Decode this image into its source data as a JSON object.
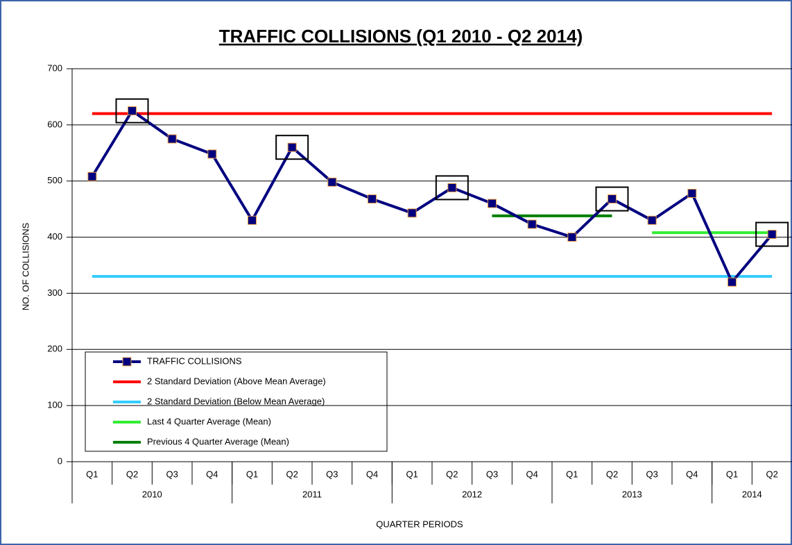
{
  "chart_data": {
    "type": "line",
    "title": "TRAFFIC COLLISIONS (Q1 2010 - Q2 2014)",
    "y_label": "NO. OF  COLLISIONS",
    "x_label": "QUARTER PERIODS",
    "categories": [
      "Q1",
      "Q2",
      "Q3",
      "Q4",
      "Q1",
      "Q2",
      "Q3",
      "Q4",
      "Q1",
      "Q2",
      "Q3",
      "Q4",
      "Q1",
      "Q2",
      "Q3",
      "Q4",
      "Q1",
      "Q2"
    ],
    "x_groups": [
      {
        "label": "2010",
        "count": 4
      },
      {
        "label": "2011",
        "count": 4
      },
      {
        "label": "2012",
        "count": 4
      },
      {
        "label": "2013",
        "count": 4
      },
      {
        "label": "2014",
        "count": 2
      }
    ],
    "ylim": [
      0,
      700
    ],
    "yticks": [
      0,
      100,
      200,
      300,
      400,
      500,
      600,
      700
    ],
    "grid": true,
    "legend": "lower left",
    "series": [
      {
        "name": "TRAFFIC COLLISIONS",
        "color": "#000080",
        "marker_edge": "#e8a040",
        "values": [
          508,
          625,
          575,
          548,
          430,
          560,
          498,
          468,
          443,
          488,
          460,
          423,
          400,
          468,
          430,
          478,
          320,
          405
        ]
      },
      {
        "name": "2 Standard Deviation (Above Mean Average)",
        "color": "#ff0000",
        "values": [
          620,
          620,
          620,
          620,
          620,
          620,
          620,
          620,
          620,
          620,
          620,
          620,
          620,
          620,
          620,
          620,
          620,
          620
        ]
      },
      {
        "name": "2 Standard Deviation (Below Mean Average)",
        "color": "#33ccff",
        "values": [
          330,
          330,
          330,
          330,
          330,
          330,
          330,
          330,
          330,
          330,
          330,
          330,
          330,
          330,
          330,
          330,
          330,
          330
        ]
      },
      {
        "name": "Last 4 Quarter Average (Mean)",
        "color": "#33ee33",
        "values": [
          null,
          null,
          null,
          null,
          null,
          null,
          null,
          null,
          null,
          null,
          null,
          null,
          null,
          null,
          408,
          408,
          408,
          408
        ]
      },
      {
        "name": "Previous 4 Quarter Average (Mean)",
        "color": "#008000",
        "values": [
          null,
          null,
          null,
          null,
          null,
          null,
          null,
          null,
          null,
          null,
          438,
          438,
          438,
          438,
          null,
          null,
          null,
          null
        ]
      }
    ]
  }
}
